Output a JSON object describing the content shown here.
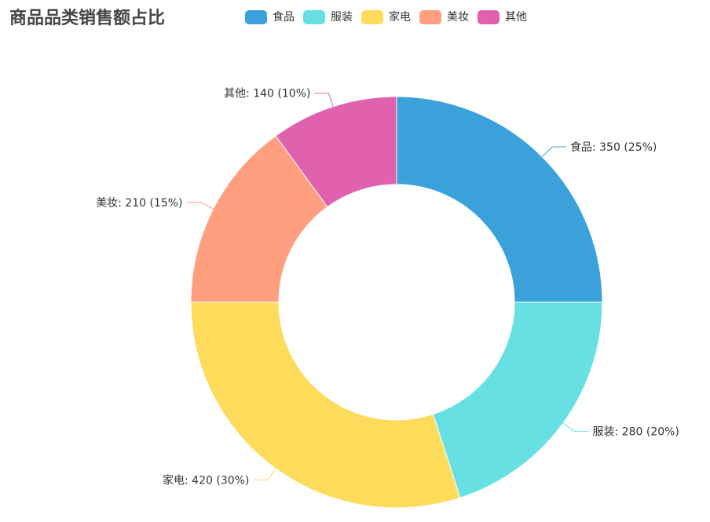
{
  "title": "商品品类销售额占比",
  "chart_data": {
    "type": "pie",
    "variant": "donut",
    "title": "商品品类销售额占比",
    "legend_position": "top",
    "slices": [
      {
        "name": "食品",
        "value": 350,
        "percent": 25,
        "label": "食品: 350 (25%)",
        "color": "#3AA1DA"
      },
      {
        "name": "服装",
        "value": 280,
        "percent": 20,
        "label": "服装: 280 (20%)",
        "color": "#67E0E3"
      },
      {
        "name": "家电",
        "value": 420,
        "percent": 30,
        "label": "家电: 420 (30%)",
        "color": "#FFDB5C"
      },
      {
        "name": "美妆",
        "value": 210,
        "percent": 15,
        "label": "美妆: 210 (15%)",
        "color": "#FF9F7F"
      },
      {
        "name": "其他",
        "value": 140,
        "percent": 10,
        "label": "其他: 140 (10%)",
        "color": "#E062AE"
      }
    ]
  }
}
